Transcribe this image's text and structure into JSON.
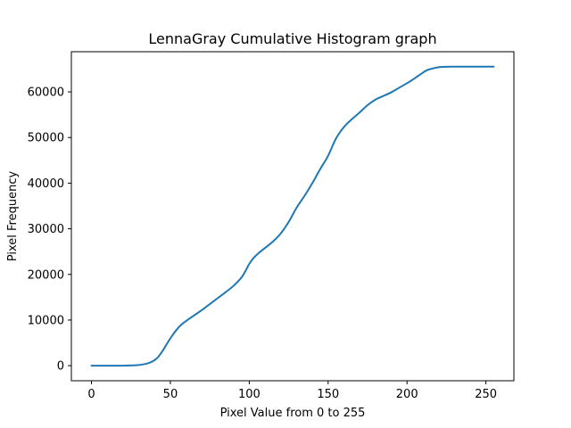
{
  "chart_data": {
    "type": "line",
    "title": "LennaGray Cumulative Histogram graph",
    "xlabel": "Pixel Value from 0 to 255",
    "ylabel": "Pixel Frequency",
    "xlim": [
      -12.75,
      267.75
    ],
    "ylim": [
      -3300,
      68800
    ],
    "xticks": [
      0,
      50,
      100,
      150,
      200,
      250
    ],
    "yticks": [
      0,
      10000,
      20000,
      30000,
      40000,
      50000,
      60000
    ],
    "grid": false,
    "legend": "none",
    "series": [
      {
        "color": "#1f77b4",
        "x": [
          0,
          10,
          20,
          25,
          30,
          33,
          36,
          39,
          42,
          45,
          48,
          51,
          54,
          57,
          60,
          65,
          70,
          75,
          80,
          85,
          90,
          95,
          98,
          100,
          103,
          106,
          110,
          115,
          120,
          125,
          130,
          135,
          140,
          145,
          150,
          155,
          160,
          165,
          170,
          175,
          180,
          185,
          190,
          195,
          200,
          205,
          210,
          213,
          216,
          220,
          225,
          230,
          235,
          240,
          245,
          250,
          255
        ],
        "y": [
          0,
          0,
          0,
          50,
          150,
          300,
          550,
          1000,
          1800,
          3200,
          4900,
          6500,
          7900,
          9000,
          9800,
          11000,
          12200,
          13500,
          14800,
          16100,
          17500,
          19300,
          21000,
          22300,
          23700,
          24700,
          25800,
          27200,
          29000,
          31500,
          34600,
          37200,
          40000,
          43100,
          46000,
          49800,
          52300,
          54000,
          55500,
          57100,
          58300,
          59100,
          59900,
          60900,
          61900,
          63000,
          64200,
          64800,
          65100,
          65400,
          65500,
          65520,
          65530,
          65536,
          65536,
          65536,
          65536
        ]
      }
    ]
  }
}
